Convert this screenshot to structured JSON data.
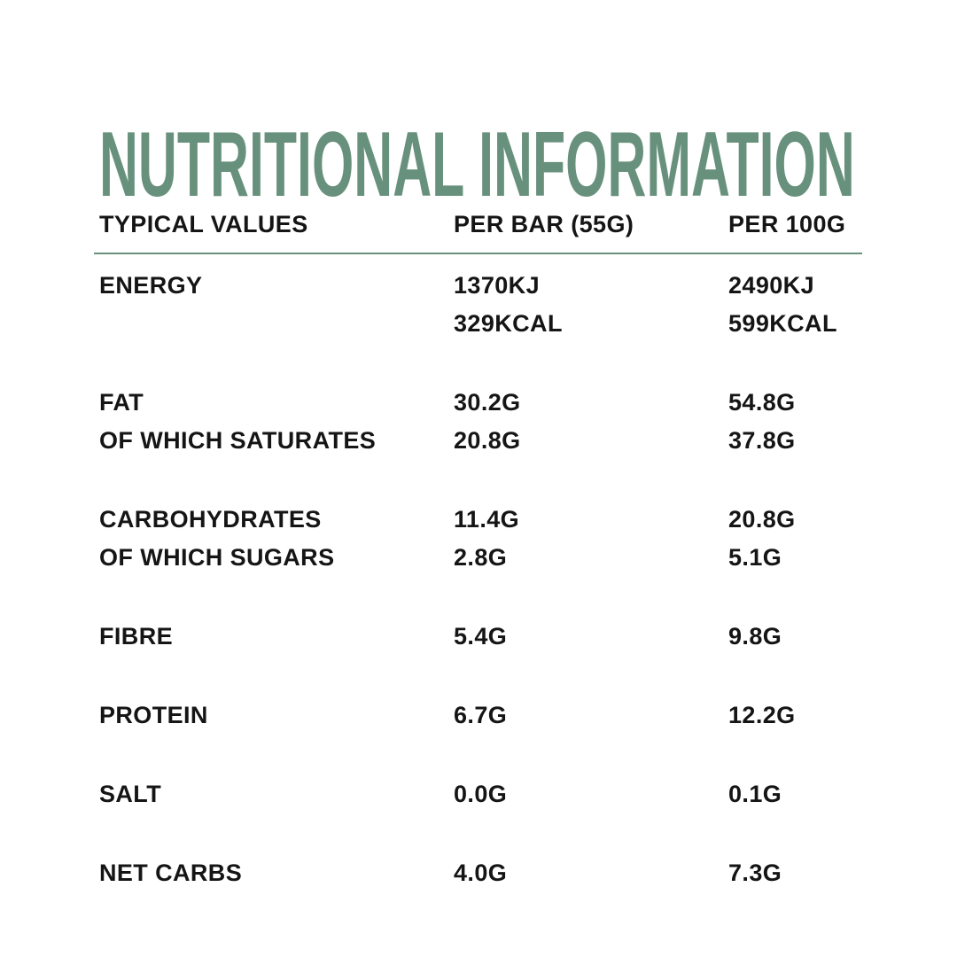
{
  "title": "NUTRITIONAL INFORMATION",
  "colors": {
    "accent": "#68917D",
    "text": "#151515",
    "background": "#FFFFFF"
  },
  "table": {
    "headers": {
      "label": "TYPICAL VALUES",
      "per_bar": "PER BAR (55G)",
      "per_100g": "PER 100G"
    },
    "rows": [
      {
        "label": "ENERGY",
        "per_bar": "1370KJ",
        "per_100g": "2490KJ"
      },
      {
        "label": "",
        "per_bar": "329KCAL",
        "per_100g": "599KCAL"
      },
      {
        "label": "FAT",
        "per_bar": "30.2G",
        "per_100g": "54.8G"
      },
      {
        "label": "OF WHICH SATURATES",
        "per_bar": "20.8G",
        "per_100g": "37.8G"
      },
      {
        "label": "CARBOHYDRATES",
        "per_bar": "11.4G",
        "per_100g": "20.8G"
      },
      {
        "label": "OF WHICH SUGARS",
        "per_bar": "2.8G",
        "per_100g": "5.1G"
      },
      {
        "label": "FIBRE",
        "per_bar": "5.4G",
        "per_100g": "9.8G"
      },
      {
        "label": "PROTEIN",
        "per_bar": "6.7G",
        "per_100g": "12.2G"
      },
      {
        "label": "SALT",
        "per_bar": "0.0G",
        "per_100g": "0.1G"
      },
      {
        "label": "NET CARBS",
        "per_bar": "4.0G",
        "per_100g": "7.3G"
      }
    ]
  }
}
